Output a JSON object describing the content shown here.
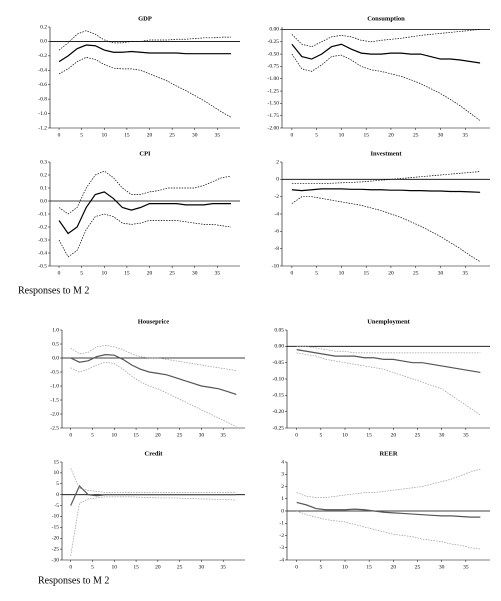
{
  "captions": [
    "Responses to M 2",
    "Responses to M 2"
  ],
  "chart_data": [
    {
      "type": "line",
      "title": "GDP",
      "x": [
        0,
        2,
        4,
        6,
        8,
        10,
        12,
        14,
        16,
        18,
        20,
        22,
        24,
        26,
        28,
        30,
        32,
        34,
        36,
        38
      ],
      "xlim": [
        -2,
        40
      ],
      "xticks": [
        0,
        5,
        10,
        15,
        20,
        25,
        30,
        35
      ],
      "ylim": [
        -1.2,
        0.2
      ],
      "yticks": [
        0.2,
        {
          "value": 0,
          "label": "0.0"
        },
        -0.2,
        -0.4,
        -0.6,
        -0.8,
        {
          "value": -1,
          "label": "-1.0"
        },
        -1.2
      ],
      "series": [
        {
          "color": "#000000",
          "style": "solid",
          "values": [
            -0.28,
            -0.2,
            -0.1,
            -0.05,
            -0.06,
            -0.12,
            -0.15,
            -0.15,
            -0.14,
            -0.15,
            -0.16,
            -0.16,
            -0.16,
            -0.16,
            -0.17,
            -0.17,
            -0.17,
            -0.17,
            -0.17,
            -0.17
          ]
        },
        {
          "color": "#000000",
          "style": "dashed",
          "values": [
            -0.12,
            -0.02,
            0.1,
            0.15,
            0.1,
            0.02,
            -0.02,
            -0.02,
            0,
            0,
            0.02,
            0.02,
            0.02,
            0.03,
            0.03,
            0.04,
            0.05,
            0.05,
            0.06,
            0.06
          ]
        },
        {
          "color": "#000000",
          "style": "dashed",
          "values": [
            -0.45,
            -0.38,
            -0.28,
            -0.22,
            -0.25,
            -0.32,
            -0.37,
            -0.38,
            -0.38,
            -0.4,
            -0.45,
            -0.5,
            -0.55,
            -0.62,
            -0.68,
            -0.75,
            -0.82,
            -0.9,
            -0.98,
            -1.05
          ]
        }
      ]
    },
    {
      "type": "line",
      "title": "Consumption",
      "x": [
        0,
        2,
        4,
        6,
        8,
        10,
        12,
        14,
        16,
        18,
        20,
        22,
        24,
        26,
        28,
        30,
        32,
        34,
        36,
        38
      ],
      "xlim": [
        -2,
        40
      ],
      "xticks": [
        0,
        5,
        10,
        15,
        20,
        25,
        30,
        35
      ],
      "ylim": [
        -2,
        0.05
      ],
      "yticks": [
        {
          "value": 0,
          "label": "0.00"
        },
        -0.25,
        {
          "value": -0.5,
          "label": "-0.50"
        },
        -0.75,
        {
          "value": -1,
          "label": "-1.00"
        },
        -1.25,
        {
          "value": -1.5,
          "label": "-1.50"
        },
        -1.75,
        {
          "value": -2,
          "label": "-2.00"
        }
      ],
      "series": [
        {
          "color": "#000000",
          "style": "solid",
          "values": [
            -0.3,
            -0.55,
            -0.6,
            -0.5,
            -0.35,
            -0.3,
            -0.4,
            -0.48,
            -0.5,
            -0.5,
            -0.48,
            -0.48,
            -0.5,
            -0.5,
            -0.55,
            -0.6,
            -0.6,
            -0.62,
            -0.65,
            -0.68
          ]
        },
        {
          "color": "#000000",
          "style": "dashed",
          "values": [
            -0.1,
            -0.3,
            -0.35,
            -0.25,
            -0.15,
            -0.12,
            -0.15,
            -0.22,
            -0.25,
            -0.22,
            -0.2,
            -0.18,
            -0.15,
            -0.12,
            -0.1,
            -0.08,
            -0.06,
            -0.04,
            -0.02,
            0
          ]
        },
        {
          "color": "#000000",
          "style": "dashed",
          "values": [
            -0.5,
            -0.8,
            -0.85,
            -0.72,
            -0.55,
            -0.52,
            -0.62,
            -0.75,
            -0.82,
            -0.85,
            -0.9,
            -0.95,
            -1.02,
            -1.1,
            -1.2,
            -1.3,
            -1.42,
            -1.55,
            -1.7,
            -1.85
          ]
        }
      ]
    },
    {
      "type": "line",
      "title": "CPI",
      "x": [
        0,
        2,
        4,
        6,
        8,
        10,
        12,
        14,
        16,
        18,
        20,
        22,
        24,
        26,
        28,
        30,
        32,
        34,
        36,
        38
      ],
      "xlim": [
        -2,
        40
      ],
      "xticks": [
        0,
        5,
        10,
        15,
        20,
        25,
        30,
        35
      ],
      "ylim": [
        -0.5,
        0.3
      ],
      "yticks": [
        0.3,
        0.2,
        0.1,
        {
          "value": 0,
          "label": "0.0"
        },
        -0.1,
        -0.2,
        -0.3,
        -0.4,
        -0.5
      ],
      "series": [
        {
          "color": "#000000",
          "style": "solid",
          "values": [
            -0.15,
            -0.25,
            -0.2,
            -0.05,
            0.05,
            0.07,
            0.02,
            -0.05,
            -0.07,
            -0.05,
            -0.02,
            -0.02,
            -0.02,
            -0.02,
            -0.03,
            -0.03,
            -0.03,
            -0.02,
            -0.02,
            -0.02
          ]
        },
        {
          "color": "#000000",
          "style": "dashed",
          "values": [
            -0.05,
            -0.1,
            -0.05,
            0.1,
            0.2,
            0.23,
            0.18,
            0.1,
            0.05,
            0.05,
            0.07,
            0.08,
            0.1,
            0.1,
            0.1,
            0.1,
            0.12,
            0.15,
            0.18,
            0.19
          ]
        },
        {
          "color": "#000000",
          "style": "dashed",
          "values": [
            -0.3,
            -0.43,
            -0.38,
            -0.22,
            -0.12,
            -0.1,
            -0.12,
            -0.17,
            -0.18,
            -0.17,
            -0.15,
            -0.15,
            -0.15,
            -0.15,
            -0.16,
            -0.17,
            -0.18,
            -0.18,
            -0.19,
            -0.2
          ]
        }
      ]
    },
    {
      "type": "line",
      "title": "Investment",
      "x": [
        0,
        2,
        4,
        6,
        8,
        10,
        12,
        14,
        16,
        18,
        20,
        22,
        24,
        26,
        28,
        30,
        32,
        34,
        36,
        38
      ],
      "xlim": [
        -2,
        40
      ],
      "xticks": [
        0,
        5,
        10,
        15,
        20,
        25,
        30,
        35
      ],
      "ylim": [
        -10,
        2
      ],
      "yticks": [
        2,
        0,
        -2,
        -4,
        -6,
        -8,
        -10
      ],
      "series": [
        {
          "color": "#000000",
          "style": "solid",
          "values": [
            -1.2,
            -1.3,
            -1.2,
            -1.1,
            -1.1,
            -1.1,
            -1.15,
            -1.15,
            -1.2,
            -1.2,
            -1.25,
            -1.25,
            -1.3,
            -1.3,
            -1.35,
            -1.35,
            -1.4,
            -1.4,
            -1.45,
            -1.5
          ]
        },
        {
          "color": "#000000",
          "style": "dashed",
          "values": [
            -0.5,
            -0.5,
            -0.5,
            -0.5,
            -0.45,
            -0.4,
            -0.35,
            -0.3,
            -0.2,
            -0.1,
            0,
            0.1,
            0.2,
            0.3,
            0.4,
            0.5,
            0.6,
            0.7,
            0.8,
            0.9
          ]
        },
        {
          "color": "#000000",
          "style": "dashed",
          "values": [
            -2.8,
            -2,
            -2,
            -2.2,
            -2.4,
            -2.6,
            -2.8,
            -3,
            -3.3,
            -3.6,
            -4,
            -4.4,
            -4.9,
            -5.4,
            -6,
            -6.6,
            -7.3,
            -8,
            -8.8,
            -9.5
          ]
        }
      ]
    },
    {
      "type": "line",
      "title": "Houseprice",
      "x": [
        0,
        2,
        4,
        6,
        8,
        10,
        12,
        14,
        16,
        18,
        20,
        22,
        24,
        26,
        28,
        30,
        32,
        34,
        36,
        38
      ],
      "xlim": [
        -2,
        40
      ],
      "xticks": [
        0,
        5,
        10,
        15,
        20,
        25,
        30,
        35
      ],
      "ylim": [
        -2.5,
        1
      ],
      "yticks": [
        {
          "value": 1,
          "label": "1.0"
        },
        0.5,
        {
          "value": 0,
          "label": "0.0"
        },
        -0.5,
        {
          "value": -1,
          "label": "-1.0"
        },
        -1.5,
        {
          "value": -2,
          "label": "-2.0"
        },
        -2.5
      ],
      "series": [
        {
          "color": "#555555",
          "style": "solid",
          "values": [
            0,
            -0.15,
            -0.1,
            0.05,
            0.12,
            0.1,
            -0.05,
            -0.25,
            -0.4,
            -0.5,
            -0.55,
            -0.6,
            -0.7,
            -0.8,
            -0.9,
            -1,
            -1.05,
            -1.1,
            -1.2,
            -1.3
          ]
        },
        {
          "color": "#999999",
          "style": "dashed",
          "values": [
            0.35,
            0.15,
            0.2,
            0.4,
            0.45,
            0.4,
            0.3,
            0.15,
            0.05,
            0,
            0,
            -0.05,
            -0.1,
            -0.15,
            -0.2,
            -0.25,
            -0.3,
            -0.35,
            -0.4,
            -0.45
          ]
        },
        {
          "color": "#999999",
          "style": "dashed",
          "values": [
            -0.35,
            -0.5,
            -0.4,
            -0.25,
            -0.15,
            -0.2,
            -0.4,
            -0.65,
            -0.85,
            -1,
            -1.1,
            -1.25,
            -1.4,
            -1.55,
            -1.7,
            -1.85,
            -2,
            -2.15,
            -2.3,
            -2.45
          ]
        }
      ]
    },
    {
      "type": "line",
      "title": "Unemployment",
      "x": [
        0,
        2,
        4,
        6,
        8,
        10,
        12,
        14,
        16,
        18,
        20,
        22,
        24,
        26,
        28,
        30,
        32,
        34,
        36,
        38
      ],
      "xlim": [
        -2,
        40
      ],
      "xticks": [
        0,
        5,
        10,
        15,
        20,
        25,
        30,
        35
      ],
      "ylim": [
        -0.25,
        0.05
      ],
      "yticks": [
        0.05,
        {
          "value": 0,
          "label": "0.00"
        },
        -0.05,
        {
          "value": -0.1,
          "label": "-0.10"
        },
        -0.15,
        {
          "value": -0.2,
          "label": "-0.20"
        },
        -0.25
      ],
      "series": [
        {
          "color": "#555555",
          "style": "solid",
          "values": [
            -0.01,
            -0.015,
            -0.02,
            -0.025,
            -0.03,
            -0.03,
            -0.03,
            -0.035,
            -0.035,
            -0.04,
            -0.04,
            -0.045,
            -0.05,
            -0.05,
            -0.055,
            -0.06,
            -0.065,
            -0.07,
            -0.075,
            -0.08
          ]
        },
        {
          "color": "#999999",
          "style": "dashed",
          "values": [
            0,
            0,
            -0.005,
            -0.01,
            -0.015,
            -0.015,
            -0.02,
            -0.02,
            -0.02,
            -0.02,
            -0.02,
            -0.02,
            -0.02,
            -0.02,
            -0.02,
            -0.02,
            -0.02,
            -0.02,
            -0.02,
            -0.02
          ]
        },
        {
          "color": "#999999",
          "style": "dashed",
          "values": [
            -0.02,
            -0.025,
            -0.03,
            -0.04,
            -0.045,
            -0.05,
            -0.055,
            -0.06,
            -0.065,
            -0.07,
            -0.08,
            -0.09,
            -0.1,
            -0.11,
            -0.12,
            -0.13,
            -0.15,
            -0.17,
            -0.19,
            -0.21
          ]
        }
      ]
    },
    {
      "type": "line",
      "title": "Credit",
      "x": [
        0,
        2,
        4,
        6,
        8,
        10,
        12,
        14,
        16,
        18,
        20,
        22,
        24,
        26,
        28,
        30,
        32,
        34,
        36,
        38
      ],
      "xlim": [
        -2,
        40
      ],
      "xticks": [
        0,
        5,
        10,
        15,
        20,
        25,
        30,
        35
      ],
      "ylim": [
        -30,
        15
      ],
      "yticks": [
        15,
        10,
        5,
        0,
        -5,
        -10,
        -15,
        -20,
        -25,
        -30
      ],
      "series": [
        {
          "color": "#555555",
          "style": "solid",
          "values": [
            -5,
            4,
            0,
            -0.5,
            0,
            0,
            0,
            0,
            0,
            0,
            0,
            0,
            0,
            0,
            0,
            0,
            0,
            0,
            0,
            0
          ]
        },
        {
          "color": "#999999",
          "style": "dashed",
          "values": [
            12,
            3,
            2,
            1.5,
            1,
            1,
            1,
            1,
            1,
            1,
            1,
            1,
            1,
            1,
            1,
            1,
            1,
            1,
            1,
            1
          ]
        },
        {
          "color": "#999999",
          "style": "dashed",
          "values": [
            -28,
            -4,
            -2,
            -1.5,
            -1,
            -1,
            -1,
            -1,
            -1.2,
            -1.3,
            -1.5,
            -1.5,
            -1.5,
            -1.7,
            -1.8,
            -2,
            -2,
            -2.2,
            -2.3,
            -2.5
          ]
        }
      ]
    },
    {
      "type": "line",
      "title": "REER",
      "x": [
        0,
        2,
        4,
        6,
        8,
        10,
        12,
        14,
        16,
        18,
        20,
        22,
        24,
        26,
        28,
        30,
        32,
        34,
        36,
        38
      ],
      "xlim": [
        -2,
        40
      ],
      "xticks": [
        0,
        5,
        10,
        15,
        20,
        25,
        30,
        35
      ],
      "ylim": [
        -4,
        4
      ],
      "yticks": [
        4,
        3,
        2,
        1,
        0,
        -1,
        -2,
        -3,
        -4
      ],
      "series": [
        {
          "color": "#555555",
          "style": "solid",
          "values": [
            0.7,
            0.5,
            0.2,
            0.1,
            0.1,
            0.1,
            0.15,
            0.1,
            0,
            -0.1,
            -0.15,
            -0.2,
            -0.25,
            -0.3,
            -0.35,
            -0.4,
            -0.4,
            -0.45,
            -0.5,
            -0.5
          ]
        },
        {
          "color": "#999999",
          "style": "dashed",
          "values": [
            1.5,
            1.2,
            1.1,
            1.1,
            1.2,
            1.3,
            1.4,
            1.5,
            1.5,
            1.6,
            1.7,
            1.8,
            1.9,
            2,
            2.2,
            2.4,
            2.6,
            2.9,
            3.2,
            3.4
          ]
        },
        {
          "color": "#999999",
          "style": "dashed",
          "values": [
            0,
            -0.3,
            -0.5,
            -0.7,
            -0.8,
            -0.9,
            -1.1,
            -1.3,
            -1.5,
            -1.7,
            -1.9,
            -2,
            -2.1,
            -2.3,
            -2.4,
            -2.5,
            -2.7,
            -2.8,
            -3,
            -3.1
          ]
        }
      ]
    }
  ]
}
